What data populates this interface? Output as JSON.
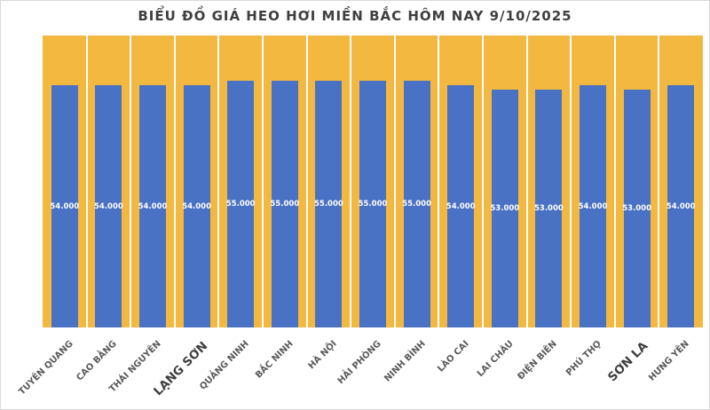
{
  "chart_data": {
    "type": "bar",
    "title": "BIỂU ĐỒ GIÁ HEO HƠI MIỀN BẮC HÔM NAY 9/10/2025",
    "categories": [
      "TUYÊN QUANG",
      "CAO BẰNG",
      "THÁI NGUYÊN",
      "LẠNG SƠN",
      "QUẢNG NINH",
      "BẮC NINH",
      "HÀ NỘI",
      "HẢI PHÒNG",
      "NINH BÌNH",
      "LÀO CAI",
      "LAI CHÂU",
      "ĐIỆN BIÊN",
      "PHÚ THỌ",
      "SƠN LA",
      "HƯNG YÊN"
    ],
    "values": [
      54000,
      54000,
      54000,
      54000,
      55000,
      55000,
      55000,
      55000,
      55000,
      54000,
      53000,
      53000,
      54000,
      53000,
      54000
    ],
    "value_labels": [
      "54.000",
      "54.000",
      "54.000",
      "54.000",
      "55.000",
      "55.000",
      "55.000",
      "55.000",
      "55.000",
      "54.000",
      "53.000",
      "53.000",
      "54.000",
      "53.000",
      "54.000"
    ],
    "emphasized_categories": [
      "LẠNG SƠN",
      "SƠN LA"
    ],
    "xlabel": "",
    "ylabel": "",
    "ylim": [
      0,
      65000
    ],
    "legend": "none",
    "grid": "vertical category separators (white) on yellow plot background",
    "value_label_position": "center"
  },
  "colors": {
    "bar": "#4a72c4",
    "plot_bg": "#f3b840",
    "gridline": "#fdfdfd",
    "title": "#3f3f3f",
    "axis_label": "#595959",
    "value_label": "#ffffff",
    "border": "#d9d9d9"
  }
}
